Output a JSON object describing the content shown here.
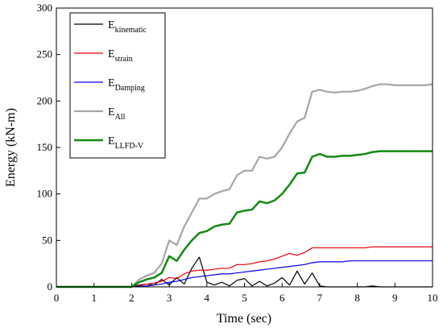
{
  "chart_data": {
    "type": "line",
    "x_label": "Time (sec)",
    "y_label": "Energy (kN-m)",
    "xlim": [
      0,
      10
    ],
    "xticks": [
      0,
      1,
      2,
      3,
      4,
      5,
      6,
      7,
      8,
      9,
      10
    ],
    "ylim": [
      0,
      300
    ],
    "yticks": [
      0,
      50,
      100,
      150,
      200,
      250,
      300
    ],
    "legend": "upper left",
    "x": [
      0,
      0.2,
      0.4,
      0.6,
      0.8,
      1,
      1.2,
      1.4,
      1.6,
      1.8,
      2,
      2.2,
      2.4,
      2.6,
      2.8,
      3,
      3.2,
      3.4,
      3.6,
      3.8,
      4,
      4.2,
      4.4,
      4.6,
      4.8,
      5,
      5.2,
      5.4,
      5.6,
      5.8,
      6,
      6.2,
      6.4,
      6.6,
      6.8,
      7,
      7.2,
      7.4,
      7.6,
      7.8,
      8,
      8.2,
      8.4,
      8.6,
      8.8,
      9,
      9.2,
      9.4,
      9.6,
      9.8,
      10
    ],
    "series": [
      {
        "name": "Ekinematic",
        "color": "#000000",
        "width": 1.2,
        "values": [
          0,
          0,
          0,
          0,
          0,
          0,
          0,
          0,
          0,
          0,
          0,
          2,
          3,
          2,
          8,
          2,
          10,
          3,
          20,
          32,
          5,
          2,
          5,
          1,
          7,
          9,
          1,
          6,
          1,
          4,
          10,
          2,
          17,
          3,
          15,
          1,
          0,
          0,
          0,
          0,
          0,
          0,
          1,
          0,
          0,
          0,
          0,
          0,
          0,
          0,
          0
        ]
      },
      {
        "name": "Estrain",
        "color": "#e8000b",
        "width": 1.2,
        "values": [
          0,
          0,
          0,
          0,
          0,
          0,
          0,
          0,
          0,
          0,
          0,
          1,
          3,
          4,
          6,
          10,
          9,
          14,
          17,
          18,
          18,
          19,
          20,
          20,
          24,
          24,
          25,
          27,
          28,
          30,
          33,
          36,
          34,
          37,
          42,
          42,
          42,
          42,
          42,
          42,
          42,
          42,
          43,
          43,
          43,
          43,
          43,
          43,
          43,
          43,
          43
        ]
      },
      {
        "name": "EDamping",
        "color": "#0000ee",
        "width": 1.2,
        "values": [
          0,
          0,
          0,
          0,
          0,
          0,
          0,
          0,
          0,
          0,
          0,
          0.5,
          1,
          2,
          3,
          5,
          6,
          8,
          10,
          11,
          12,
          13,
          14,
          14,
          15,
          16,
          17,
          18,
          19,
          20,
          21,
          22,
          23,
          24,
          26,
          27,
          27,
          27,
          27,
          28,
          28,
          28,
          28,
          28,
          28,
          28,
          28,
          28,
          28,
          28,
          28
        ]
      },
      {
        "name": "EAll",
        "color": "#a6a6a6",
        "width": 2.2,
        "values": [
          0,
          0,
          0,
          0,
          0,
          0,
          0,
          0,
          0,
          0,
          0,
          8,
          12,
          15,
          25,
          50,
          45,
          65,
          80,
          95,
          95,
          100,
          103,
          105,
          120,
          125,
          125,
          140,
          138,
          140,
          150,
          165,
          178,
          182,
          210,
          212,
          210,
          209,
          210,
          210,
          211,
          213,
          216,
          218,
          218,
          217,
          217,
          217,
          217,
          217,
          218
        ]
      },
      {
        "name": "ELLFD-V",
        "color": "#138a13",
        "width": 2.5,
        "values": [
          0,
          0,
          0,
          0,
          0,
          0,
          0,
          0,
          0,
          0,
          0,
          5,
          8,
          10,
          15,
          33,
          28,
          40,
          50,
          58,
          60,
          65,
          67,
          68,
          80,
          82,
          83,
          92,
          90,
          93,
          100,
          110,
          122,
          123,
          140,
          143,
          140,
          140,
          141,
          141,
          142,
          143,
          145,
          146,
          146,
          146,
          146,
          146,
          146,
          146,
          146
        ]
      }
    ]
  }
}
